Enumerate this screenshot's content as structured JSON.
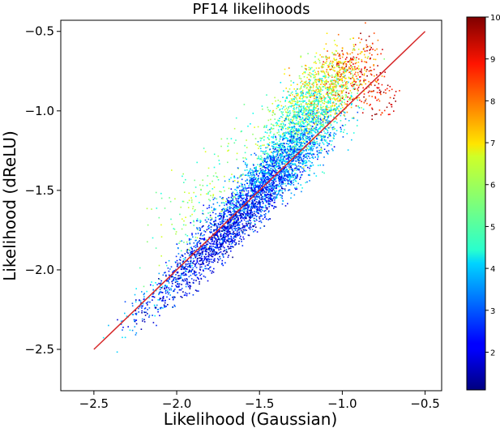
{
  "chart_data": {
    "type": "scatter",
    "title": "PF14 likelihoods",
    "xlabel": "Likelihood (Gaussian)",
    "ylabel": "Likelihood (dReLU)",
    "xlim": [
      -2.7,
      -0.4
    ],
    "ylim": [
      -2.76,
      -0.43
    ],
    "x_ticks": [
      -2.5,
      -2.0,
      -1.5,
      -1.0,
      -0.5
    ],
    "x_tick_labels": [
      "−2.5",
      "−2.0",
      "−1.5",
      "−1.0",
      "−0.5"
    ],
    "y_ticks": [
      -2.5,
      -2.0,
      -1.5,
      -1.0,
      -0.5
    ],
    "y_tick_labels": [
      "−2.5",
      "−2.0",
      "−1.5",
      "−1.0",
      "−0.5"
    ],
    "grid": false,
    "colormap": "jet",
    "colorbar": {
      "range": [
        1.1,
        10
      ],
      "ticks": [
        2,
        3,
        4,
        5,
        6,
        7,
        8,
        9,
        10
      ],
      "tick_labels": [
        "2",
        "3",
        "4",
        "5",
        "6",
        "7",
        "8",
        "9",
        "10"
      ]
    },
    "reference_line": {
      "points": [
        [
          -2.5,
          -2.5
        ],
        [
          -0.5,
          -0.5
        ]
      ],
      "color": "#d62728"
    },
    "point_clusters": [
      {
        "center": [
          -1.75,
          -1.82
        ],
        "spread": [
          0.42,
          0.08
        ],
        "value_range": [
          1.2,
          3.0
        ],
        "count": 900
      },
      {
        "center": [
          -1.55,
          -1.55
        ],
        "spread": [
          0.38,
          0.1
        ],
        "value_range": [
          2.0,
          3.8
        ],
        "count": 1300
      },
      {
        "center": [
          -1.35,
          -1.3
        ],
        "spread": [
          0.3,
          0.12
        ],
        "value_range": [
          2.8,
          5.0
        ],
        "count": 1200
      },
      {
        "center": [
          -1.25,
          -1.05
        ],
        "spread": [
          0.22,
          0.14
        ],
        "value_range": [
          4.0,
          6.5
        ],
        "count": 900
      },
      {
        "center": [
          -1.1,
          -0.85
        ],
        "spread": [
          0.18,
          0.15
        ],
        "value_range": [
          5.5,
          8.0
        ],
        "count": 600
      },
      {
        "center": [
          -0.95,
          -0.75
        ],
        "spread": [
          0.15,
          0.12
        ],
        "value_range": [
          7.0,
          10.0
        ],
        "count": 260
      },
      {
        "center": [
          -2.1,
          -2.12
        ],
        "spread": [
          0.3,
          0.08
        ],
        "value_range": [
          2.5,
          4.5
        ],
        "count": 180
      },
      {
        "center": [
          -1.75,
          -1.5
        ],
        "spread": [
          0.35,
          0.18
        ],
        "value_range": [
          4.5,
          6.5
        ],
        "count": 260
      },
      {
        "center": [
          -0.8,
          -0.9
        ],
        "spread": [
          0.1,
          0.12
        ],
        "value_range": [
          8.0,
          10.0
        ],
        "count": 90
      }
    ]
  }
}
